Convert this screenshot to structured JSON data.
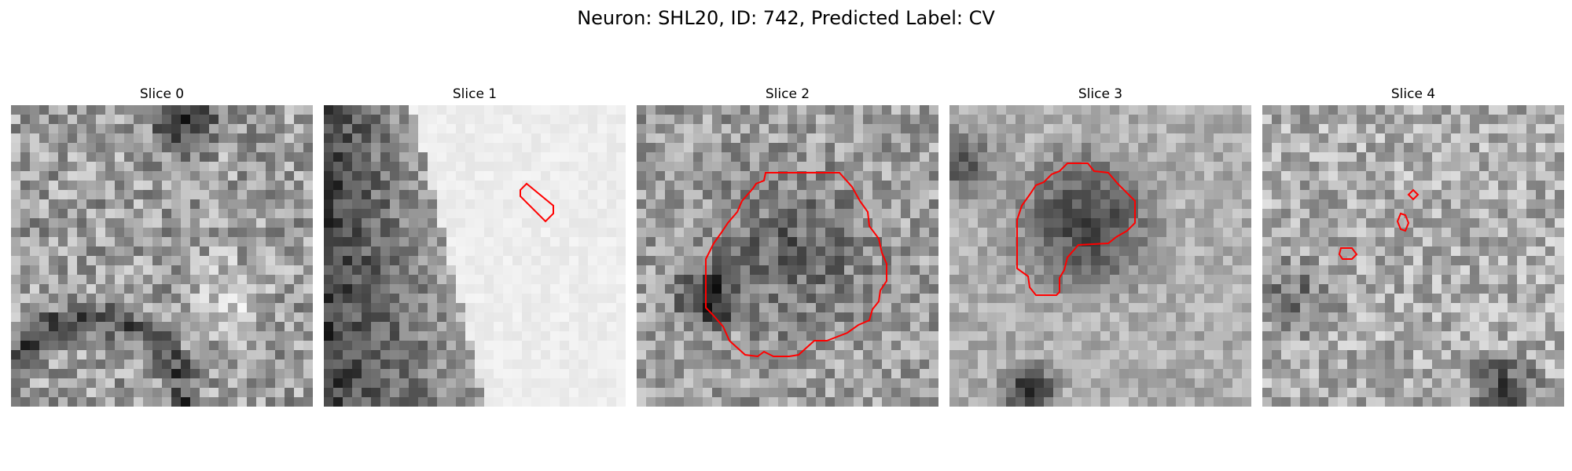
{
  "figure": {
    "suptitle": "Neuron: SHL20, ID: 742, Predicted Label: CV",
    "contour_color": "#ff0000",
    "colormap": "gray"
  },
  "panels": [
    {
      "title": "Slice 0",
      "has_contour": false
    },
    {
      "title": "Slice 1",
      "has_contour": true
    },
    {
      "title": "Slice 2",
      "has_contour": true
    },
    {
      "title": "Slice 3",
      "has_contour": true
    },
    {
      "title": "Slice 4",
      "has_contour": true
    }
  ]
}
